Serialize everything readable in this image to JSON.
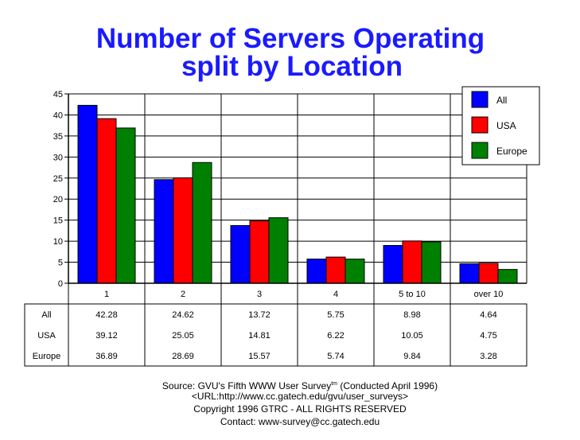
{
  "chart_data": {
    "type": "bar",
    "title": "Number of Servers Operating",
    "subtitle": "split by Location",
    "categories": [
      "1",
      "2",
      "3",
      "4",
      "5 to 10",
      "over 10"
    ],
    "series": [
      {
        "name": "All",
        "color": "#0000ff",
        "values": [
          42.28,
          24.62,
          13.72,
          5.75,
          8.98,
          4.64
        ]
      },
      {
        "name": "USA",
        "color": "#ff0000",
        "values": [
          39.12,
          25.05,
          14.81,
          6.22,
          10.05,
          4.75
        ]
      },
      {
        "name": "Europe",
        "color": "#008000",
        "values": [
          36.89,
          28.69,
          15.57,
          5.74,
          9.84,
          3.28
        ]
      }
    ],
    "ylim": [
      0,
      45
    ],
    "yticks": [
      0,
      5,
      10,
      15,
      20,
      25,
      30,
      35,
      40,
      45
    ],
    "grid": true,
    "legend": "top-right",
    "data_table": true
  },
  "footer": {
    "source_prefix": "Source: GVU's Fifth WWW User Survey",
    "source_tm": "tm",
    "source_suffix": "  (Conducted April 1996)",
    "url": "<URL:http://www.cc.gatech.edu/gvu/user_surveys>",
    "copyright": "Copyright 1996 GTRC -  ALL RIGHTS RESERVED",
    "contact": "Contact: www-survey@cc.gatech.edu"
  }
}
